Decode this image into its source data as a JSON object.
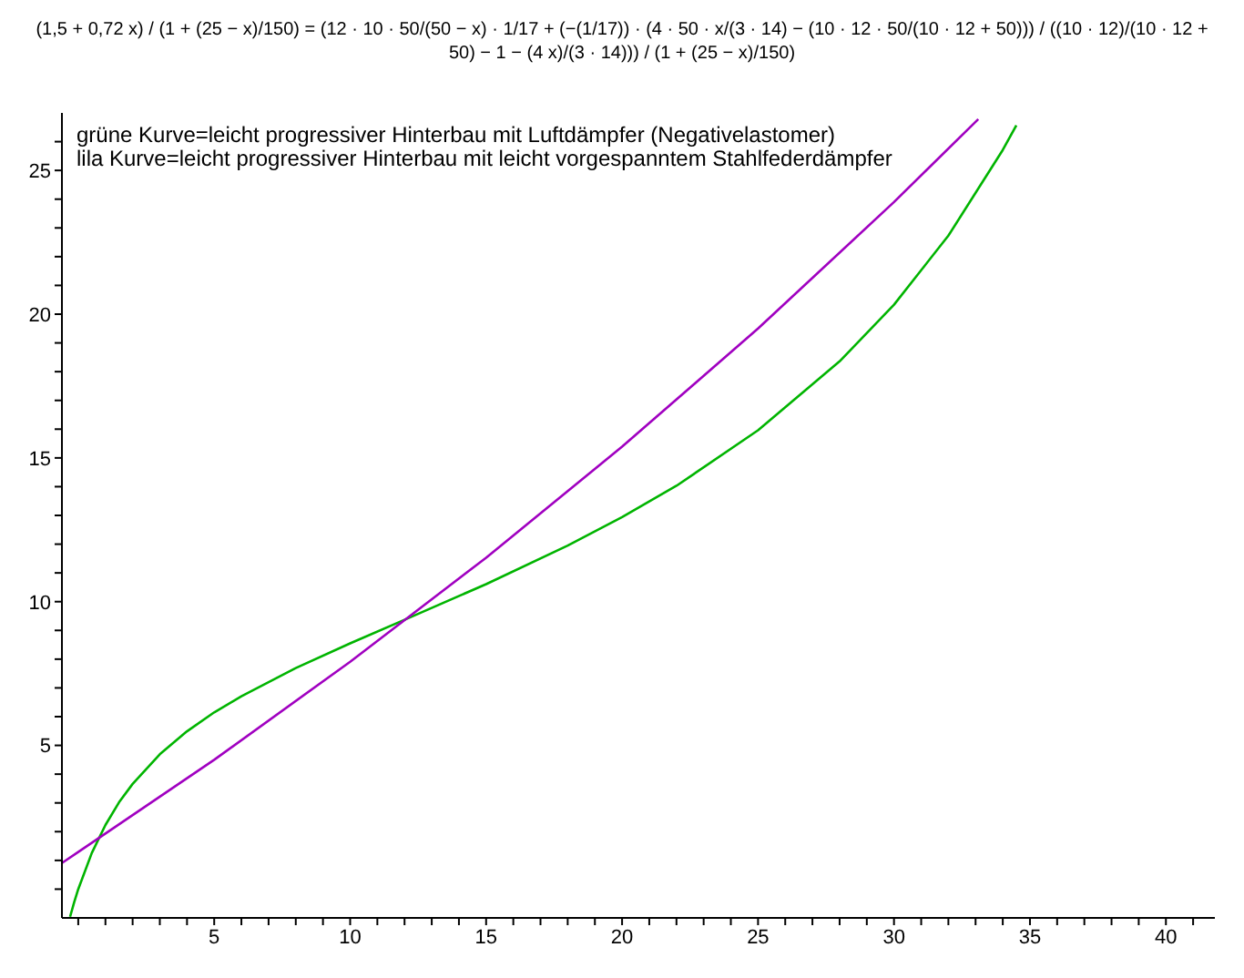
{
  "chart_data": {
    "type": "line",
    "title": "(1,5 + 0,72 x) / (1 + (25 − x)/150) = (12 · 10 · 50/(50 − x) · 1/17 + (−(1/17)) · (4 · 50 · x/(3 · 14) − (10 · 12 · 50/(10 · 12 + 50))) / ((10 · 12)/(10 · 12 + 50) − 1 − (4 x)/(3 · 14))) / (1 + (25 − x)/150)",
    "annotations": [
      "grüne Kurve=leicht progressiver Hinterbau mit Luftdämpfer (Negativelastomer)",
      "lila Kurve=leicht progressiver Hinterbau mit leicht vorgespanntem Stahlfederdämpfer"
    ],
    "series": [
      {
        "color": "#00b400",
        "x": [
          -0.3,
          -0.15,
          0,
          0.5,
          1,
          1.5,
          2,
          3,
          4,
          5,
          6,
          8,
          10,
          12,
          15,
          18,
          20,
          22,
          25,
          28,
          30,
          32,
          34,
          34.5
        ],
        "values": [
          -0.96,
          -0.46,
          0,
          1.26,
          2.23,
          3.02,
          3.66,
          4.69,
          5.49,
          6.15,
          6.71,
          7.69,
          8.55,
          9.37,
          10.61,
          11.95,
          12.94,
          14.03,
          15.96,
          18.36,
          20.33,
          22.73,
          25.71,
          26.57
        ]
      },
      {
        "color": "#a000c0",
        "x": [
          -0.6,
          0,
          5,
          10,
          15,
          20,
          25,
          30,
          33.1
        ],
        "values": [
          0.91,
          1.29,
          4.5,
          7.91,
          11.53,
          15.39,
          19.5,
          23.9,
          26.78
        ]
      }
    ],
    "xlim": [
      -0.6,
      41.8
    ],
    "ylim": [
      -1,
      27
    ],
    "xticks": [
      {
        "value": 0,
        "label": null
      },
      {
        "value": 1,
        "label": null
      },
      {
        "value": 2,
        "label": null
      },
      {
        "value": 3,
        "label": null
      },
      {
        "value": 4,
        "label": null
      },
      5,
      {
        "value": 6,
        "label": null
      },
      {
        "value": 7,
        "label": null
      },
      {
        "value": 8,
        "label": null
      },
      {
        "value": 9,
        "label": null
      },
      10,
      {
        "value": 11,
        "label": null
      },
      {
        "value": 12,
        "label": null
      },
      {
        "value": 13,
        "label": null
      },
      {
        "value": 14,
        "label": null
      },
      15,
      {
        "value": 16,
        "label": null
      },
      {
        "value": 17,
        "label": null
      },
      {
        "value": 18,
        "label": null
      },
      {
        "value": 19,
        "label": null
      },
      20,
      {
        "value": 21,
        "label": null
      },
      {
        "value": 22,
        "label": null
      },
      {
        "value": 23,
        "label": null
      },
      {
        "value": 24,
        "label": null
      },
      25,
      {
        "value": 26,
        "label": null
      },
      {
        "value": 27,
        "label": null
      },
      {
        "value": 28,
        "label": null
      },
      {
        "value": 29,
        "label": null
      },
      30,
      {
        "value": 31,
        "label": null
      },
      {
        "value": 32,
        "label": null
      },
      {
        "value": 33,
        "label": null
      },
      {
        "value": 34,
        "label": null
      },
      35,
      {
        "value": 36,
        "label": null
      },
      {
        "value": 37,
        "label": null
      },
      {
        "value": 38,
        "label": null
      },
      {
        "value": 39,
        "label": null
      },
      40,
      {
        "value": 41,
        "label": null
      }
    ],
    "yticks": [
      {
        "value": 0,
        "label": null
      },
      {
        "value": 1,
        "label": null
      },
      {
        "value": 2,
        "label": null
      },
      {
        "value": 3,
        "label": null
      },
      {
        "value": 4,
        "label": null
      },
      5,
      {
        "value": 6,
        "label": null
      },
      {
        "value": 7,
        "label": null
      },
      {
        "value": 8,
        "label": null
      },
      {
        "value": 9,
        "label": null
      },
      10,
      {
        "value": 11,
        "label": null
      },
      {
        "value": 12,
        "label": null
      },
      {
        "value": 13,
        "label": null
      },
      {
        "value": 14,
        "label": null
      },
      15,
      {
        "value": 16,
        "label": null
      },
      {
        "value": 17,
        "label": null
      },
      {
        "value": 18,
        "label": null
      },
      {
        "value": 19,
        "label": null
      },
      20,
      {
        "value": 21,
        "label": null
      },
      {
        "value": 22,
        "label": null
      },
      {
        "value": 23,
        "label": null
      },
      {
        "value": 24,
        "label": null
      },
      25,
      {
        "value": 26,
        "label": null
      }
    ],
    "marker": "none",
    "line_style": "solid"
  }
}
